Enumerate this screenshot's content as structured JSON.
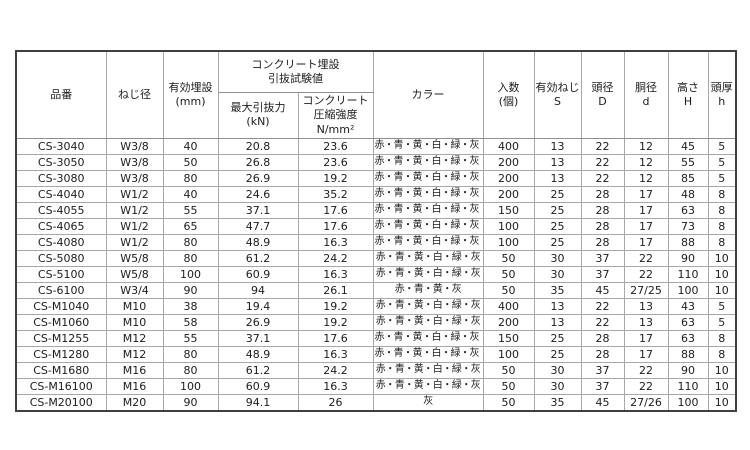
{
  "table": {
    "header": {
      "product_no": "品番",
      "screw_dia": "ねじ径",
      "embed_depth": "有効埋設\n(mm)",
      "pullout_group": "コンクリート埋設\n引抜試験値",
      "max_pullout": "最大引抜力\n(kN)",
      "compressive": "コンクリート\n圧縮強度\nN/mm²",
      "color": "カラー",
      "qty": "入数\n(個)",
      "effective_thread": "有効ねじ\nS",
      "head_dia": "頭径\nD",
      "body_dia": "胴径\nd",
      "height": "高さ\nH",
      "head_thickness": "頭厚\nh"
    },
    "rows": [
      [
        "CS-3040",
        "W3/8",
        "40",
        "20.8",
        "23.6",
        "赤・青・黄・白・緑・灰・橙・桃",
        "400",
        "13",
        "22",
        "12",
        "45",
        "5"
      ],
      [
        "CS-3050",
        "W3/8",
        "50",
        "26.8",
        "23.6",
        "赤・青・黄・白・緑・灰・橙・桃",
        "200",
        "13",
        "22",
        "12",
        "55",
        "5"
      ],
      [
        "CS-3080",
        "W3/8",
        "80",
        "26.9",
        "19.2",
        "赤・青・黄・白・緑・灰・橙・桃",
        "200",
        "13",
        "22",
        "12",
        "85",
        "5"
      ],
      [
        "CS-4040",
        "W1/2",
        "40",
        "24.6",
        "35.2",
        "赤・青・黄・白・緑・灰・橙・桃",
        "200",
        "25",
        "28",
        "17",
        "48",
        "8"
      ],
      [
        "CS-4055",
        "W1/2",
        "55",
        "37.1",
        "17.6",
        "赤・青・黄・白・緑・灰・橙・桃",
        "150",
        "25",
        "28",
        "17",
        "63",
        "8"
      ],
      [
        "CS-4065",
        "W1/2",
        "65",
        "47.7",
        "17.6",
        "赤・青・黄・白・緑・灰・橙・桃",
        "100",
        "25",
        "28",
        "17",
        "73",
        "8"
      ],
      [
        "CS-4080",
        "W1/2",
        "80",
        "48.9",
        "16.3",
        "赤・青・黄・白・緑・灰・橙・桃",
        "100",
        "25",
        "28",
        "17",
        "88",
        "8"
      ],
      [
        "CS-5080",
        "W5/8",
        "80",
        "61.2",
        "24.2",
        "赤・青・黄・白・緑・灰",
        "50",
        "30",
        "37",
        "22",
        "90",
        "10"
      ],
      [
        "CS-5100",
        "W5/8",
        "100",
        "60.9",
        "16.3",
        "赤・青・黄・白・緑・灰",
        "50",
        "30",
        "37",
        "22",
        "110",
        "10"
      ],
      [
        "CS-6100",
        "W3/4",
        "90",
        "94",
        "26.1",
        "赤・青・黄・灰",
        "50",
        "35",
        "45",
        "27/25",
        "100",
        "10"
      ],
      [
        "CS-M1040",
        "M10",
        "38",
        "19.4",
        "19.2",
        "赤・青・黄・白・緑・灰",
        "400",
        "13",
        "22",
        "13",
        "43",
        "5"
      ],
      [
        "CS-M1060",
        "M10",
        "58",
        "26.9",
        "19.2",
        "赤・青・黄・白・緑・灰",
        "200",
        "13",
        "22",
        "13",
        "63",
        "5"
      ],
      [
        "CS-M1255",
        "M12",
        "55",
        "37.1",
        "17.6",
        "赤・青・黄・白・緑・灰・橙・桃",
        "150",
        "25",
        "28",
        "17",
        "63",
        "8"
      ],
      [
        "CS-M1280",
        "M12",
        "80",
        "48.9",
        "16.3",
        "赤・青・黄・白・緑・灰・橙・桃",
        "100",
        "25",
        "28",
        "17",
        "88",
        "8"
      ],
      [
        "CS-M1680",
        "M16",
        "80",
        "61.2",
        "24.2",
        "赤・青・黄・白・緑・灰",
        "50",
        "30",
        "37",
        "22",
        "90",
        "10"
      ],
      [
        "CS-M16100",
        "M16",
        "100",
        "60.9",
        "16.3",
        "赤・青・黄・白・緑・灰",
        "50",
        "30",
        "37",
        "22",
        "110",
        "10"
      ],
      [
        "CS-M20100",
        "M20",
        "90",
        "94.1",
        "26",
        "灰",
        "50",
        "35",
        "45",
        "27/26",
        "100",
        "10"
      ]
    ]
  }
}
